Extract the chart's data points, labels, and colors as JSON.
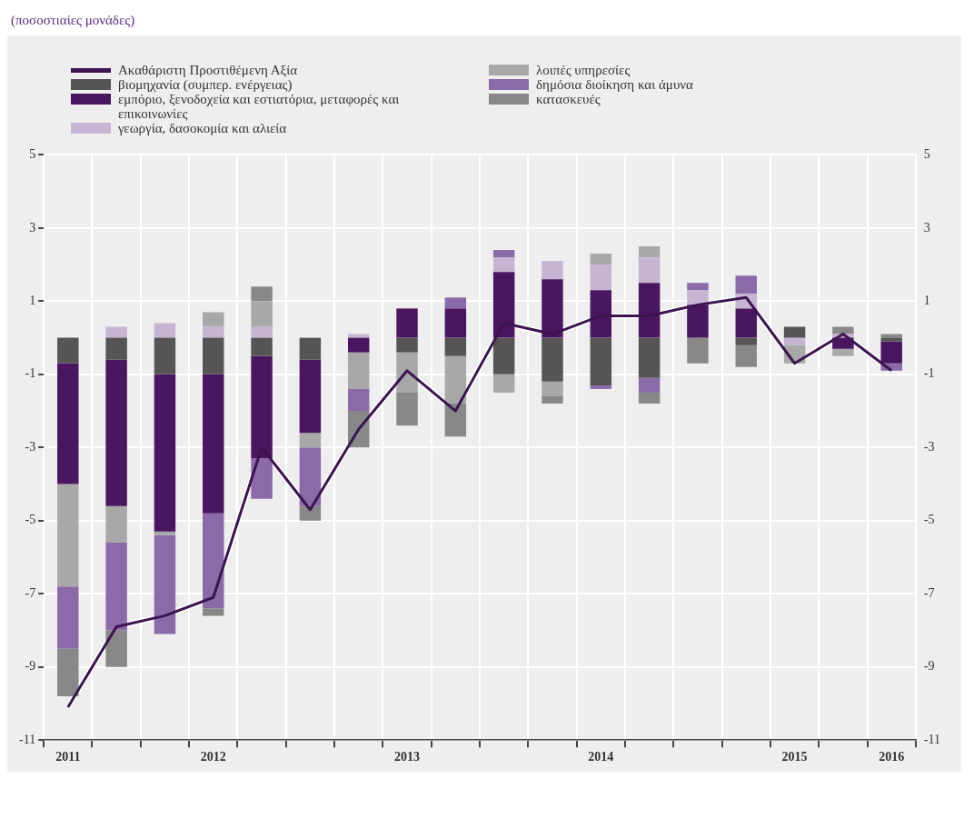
{
  "chart_data": {
    "type": "bar",
    "annotations": [
      "(ποσοστιαίες μονάδες)"
    ],
    "categories": [
      "2011",
      null,
      null,
      "2012",
      null,
      null,
      null,
      "2013",
      null,
      null,
      null,
      "2014",
      null,
      null,
      null,
      "2015",
      null,
      "2016"
    ],
    "stacked": true,
    "ylim": [
      -11,
      5
    ],
    "yticks": [
      5,
      3,
      1,
      -1,
      -3,
      -5,
      -7,
      -9,
      -11
    ],
    "y2lim": [
      -11,
      5
    ],
    "y2ticks": [
      5,
      3,
      1,
      -1,
      -3,
      -5,
      -7,
      -9,
      -11
    ],
    "grid": true,
    "legend": "top",
    "marker": "none",
    "line_style": "solid",
    "series": [
      {
        "name": "Ακαθάριστη Προστιθέμενη Αξία",
        "type": "line",
        "color": "#3c1450",
        "values": [
          -10.1,
          -7.9,
          -7.6,
          -7.1,
          -3.0,
          -4.7,
          -2.5,
          -0.9,
          -2.0,
          0.4,
          0.1,
          0.6,
          0.6,
          0.9,
          1.1,
          -0.7,
          0.1,
          -0.9
        ]
      },
      {
        "name": "βιομηχανία (συμπερ. ενέργειας)",
        "color": "#555555",
        "values": [
          -0.7,
          -0.6,
          -1.0,
          -1.0,
          -0.5,
          -0.6,
          0,
          -0.4,
          -0.5,
          -1.0,
          -1.2,
          -1.3,
          -1.1,
          0,
          -0.2,
          0.3,
          0,
          -0.1
        ]
      },
      {
        "name": "εμπόριο, ξενοδοχεία και εστιατόρια, μεταφορές και επικοινωνίες",
        "color": "#4b1660",
        "values": [
          -3.3,
          -4.0,
          -4.3,
          -3.8,
          -2.8,
          -2.0,
          -0.4,
          0.8,
          0.8,
          1.8,
          1.6,
          1.3,
          1.5,
          0.9,
          0.8,
          0,
          -0.3,
          -0.6
        ]
      },
      {
        "name": "γεωργία, δασοκομία και αλιεία",
        "color": "#c6b4d2",
        "values": [
          0,
          0.3,
          0.4,
          0.3,
          0.3,
          0,
          0.1,
          0,
          0,
          0.4,
          0.5,
          0.7,
          0.7,
          0.4,
          0.4,
          -0.2,
          0.1,
          0
        ]
      },
      {
        "name": "λοιπές υπηρεσίες",
        "color": "#a8a8a8",
        "values": [
          -2.8,
          -1.0,
          -0.1,
          0.4,
          0.7,
          -0.4,
          -1.0,
          -1.1,
          -1.3,
          -0.5,
          -0.4,
          0.3,
          0.3,
          0,
          0,
          -0.5,
          -0.2,
          0
        ]
      },
      {
        "name": "δημόσια διοίκηση και άμυνα",
        "color": "#8a6aa8",
        "values": [
          -1.7,
          -2.4,
          -2.7,
          -2.6,
          -1.1,
          -1.6,
          -0.6,
          0,
          0.3,
          0.2,
          0,
          -0.1,
          -0.4,
          0.2,
          0.5,
          0,
          0,
          -0.2
        ]
      },
      {
        "name": "κατασκευές",
        "color": "#888888",
        "values": [
          -1.3,
          -1.0,
          0,
          -0.2,
          0.4,
          -0.4,
          -1.0,
          -0.9,
          -0.9,
          0,
          -0.2,
          0,
          -0.3,
          -0.7,
          -0.6,
          0,
          0.2,
          0.1
        ]
      }
    ]
  }
}
